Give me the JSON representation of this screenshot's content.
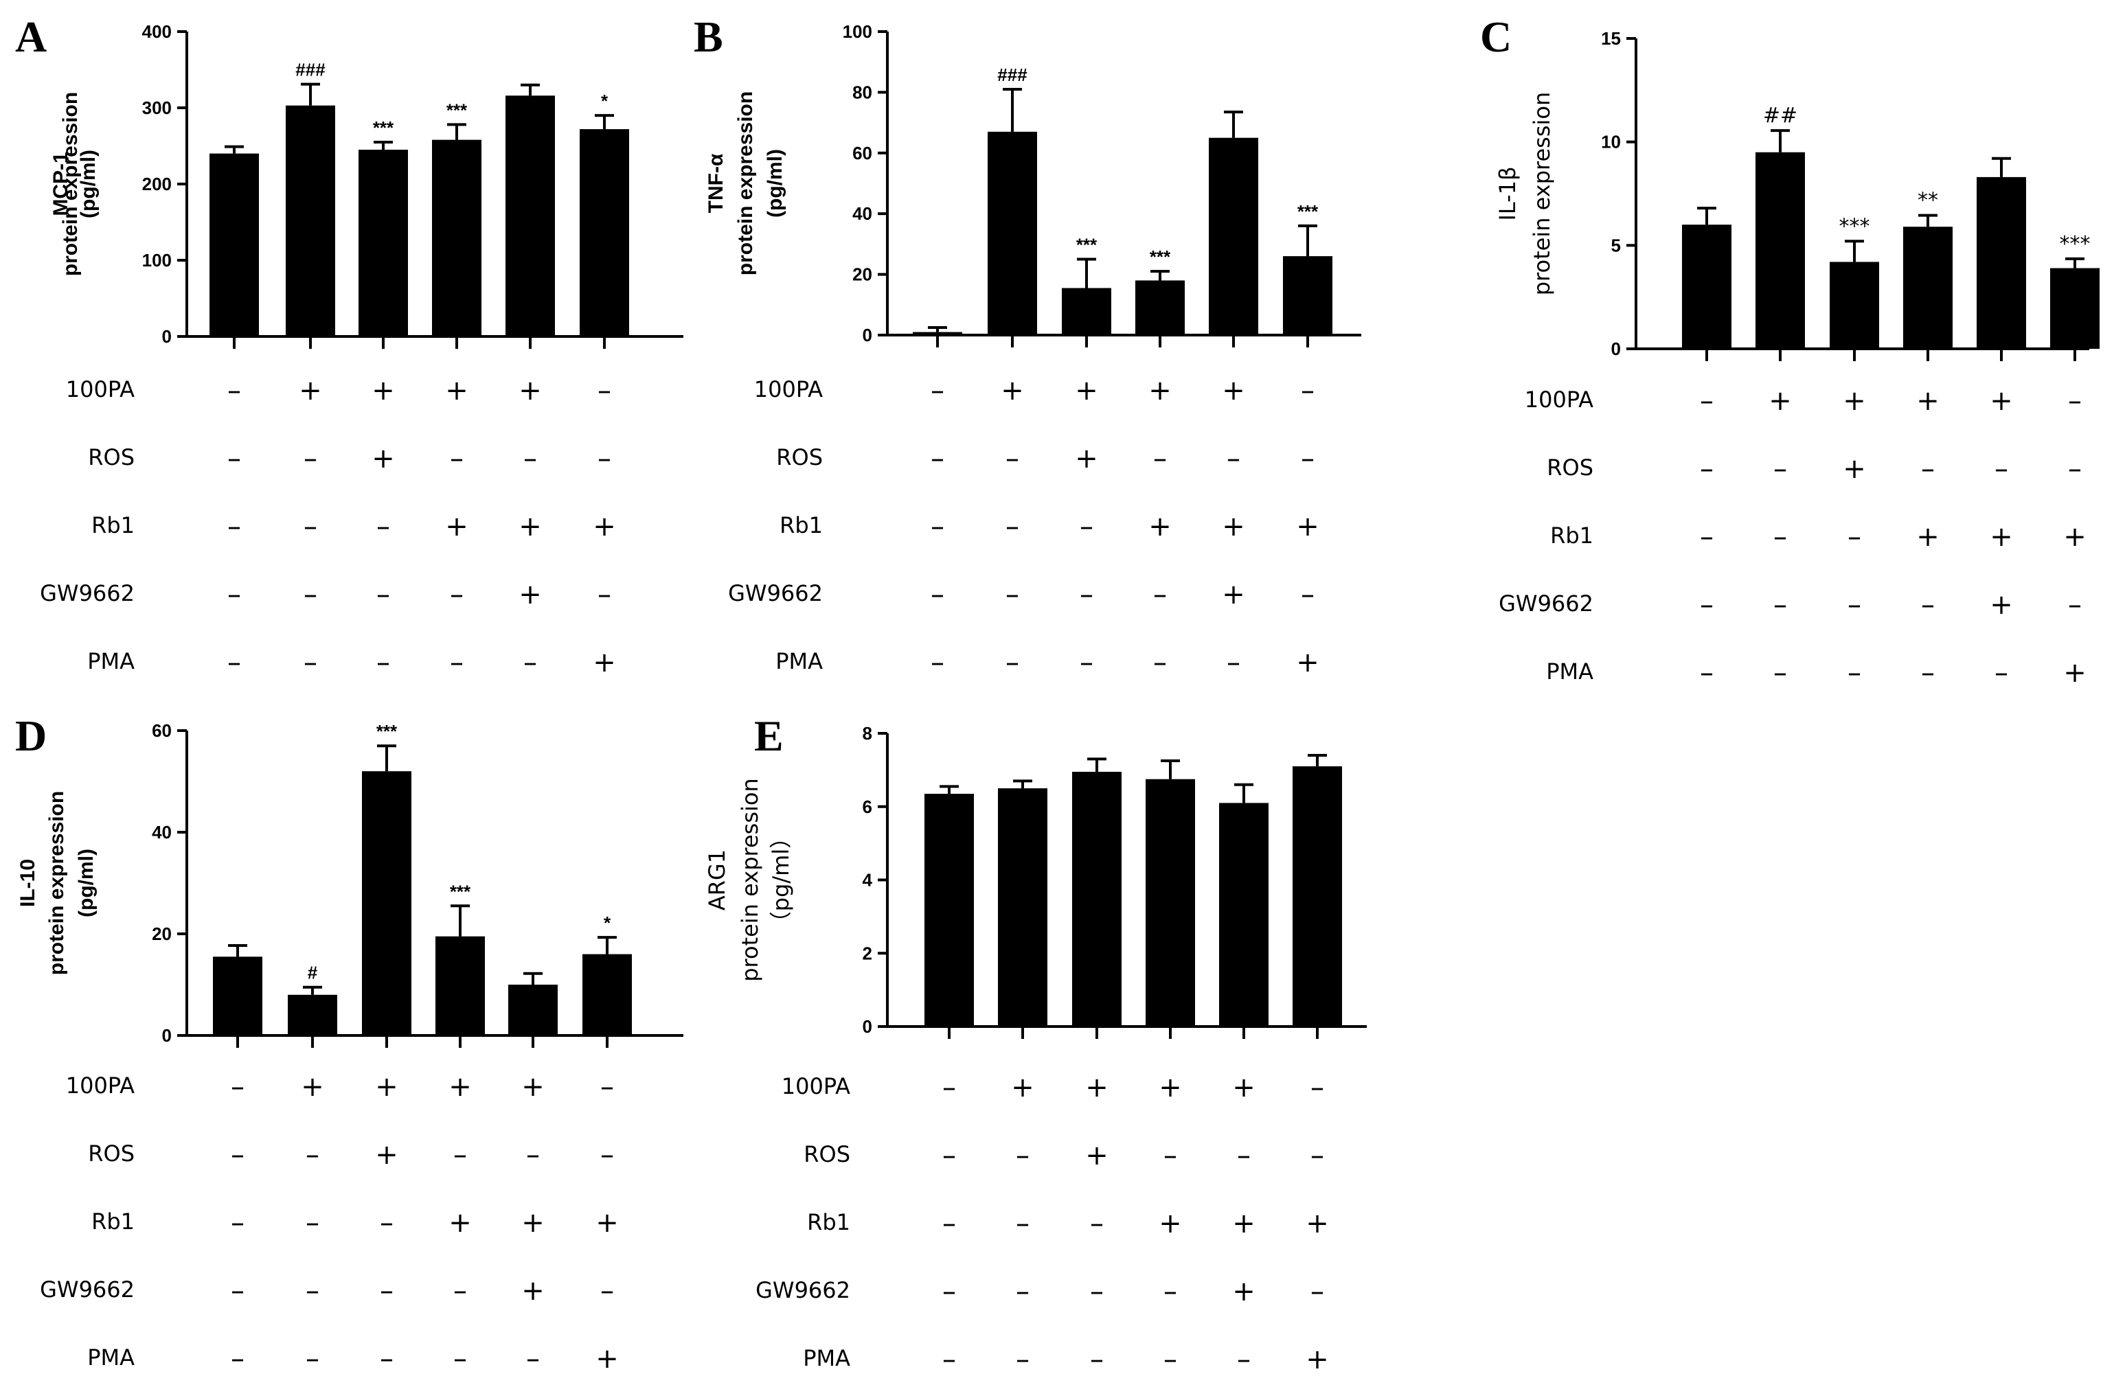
{
  "figure": {
    "treatment_labels": [
      "100PA",
      "ROS",
      "Rb1",
      "GW9662",
      "PMA"
    ],
    "treatment_matrix": [
      [
        "–",
        "+",
        "+",
        "+",
        "+",
        "–"
      ],
      [
        "–",
        "–",
        "+",
        "–",
        "–",
        "–"
      ],
      [
        "–",
        "–",
        "–",
        "+",
        "+",
        "+"
      ],
      [
        "–",
        "–",
        "–",
        "–",
        "+",
        "–"
      ],
      [
        "–",
        "–",
        "–",
        "–",
        "–",
        "+"
      ]
    ],
    "colors": {
      "bar": "#000000",
      "axis": "#000000",
      "background": "#ffffff"
    }
  },
  "chart_data": [
    {
      "panel": "A",
      "type": "bar",
      "ylabel_lines": [
        "MCP-1",
        "protein expression",
        "(pg/ml)"
      ],
      "ylim": [
        0,
        400
      ],
      "yticks": [
        0,
        100,
        200,
        300,
        400
      ],
      "values": [
        240,
        303,
        245,
        258,
        316,
        272
      ],
      "errors": [
        9,
        28,
        10,
        20,
        14,
        18
      ],
      "significance": [
        "",
        "###",
        "***",
        "***",
        "",
        "*"
      ]
    },
    {
      "panel": "B",
      "type": "bar",
      "ylabel_lines": [
        "TNF-α",
        "protein expression",
        "(pg/ml)"
      ],
      "ylim": [
        0,
        100
      ],
      "yticks": [
        0,
        20,
        40,
        60,
        80,
        100
      ],
      "values": [
        1,
        67,
        15.5,
        18,
        65,
        26
      ],
      "errors": [
        1.5,
        14,
        9.5,
        3,
        8.5,
        10
      ],
      "significance": [
        "",
        "###",
        "***",
        "***",
        "",
        "***"
      ]
    },
    {
      "panel": "C",
      "type": "bar",
      "ylabel_lines": [
        "IL-1β",
        "protein expression"
      ],
      "ylim": [
        0,
        15
      ],
      "yticks": [
        0,
        5,
        10,
        15
      ],
      "values": [
        6,
        9.5,
        4.2,
        5.9,
        8.3,
        3.9
      ],
      "errors": [
        0.8,
        1.05,
        1.0,
        0.55,
        0.9,
        0.45
      ],
      "significance": [
        "",
        "##",
        "***",
        "**",
        "",
        "***"
      ]
    },
    {
      "panel": "D",
      "type": "bar",
      "ylabel_lines": [
        "IL-10",
        "protein expression",
        "(pg/ml)"
      ],
      "ylim": [
        0,
        60
      ],
      "yticks": [
        0,
        20,
        40,
        60
      ],
      "values": [
        15.5,
        8,
        52,
        19.5,
        10,
        16
      ],
      "errors": [
        2.2,
        1.5,
        5,
        6,
        2.2,
        3.3
      ],
      "significance": [
        "",
        "#",
        "***",
        "***",
        "",
        "*"
      ]
    },
    {
      "panel": "E",
      "type": "bar",
      "ylabel_lines": [
        "ARG1",
        "protein expression",
        "（pg/ml）"
      ],
      "ylim": [
        0,
        8
      ],
      "yticks": [
        0,
        2,
        4,
        6,
        8
      ],
      "values": [
        6.35,
        6.5,
        6.95,
        6.75,
        6.1,
        7.1
      ],
      "errors": [
        0.2,
        0.2,
        0.35,
        0.5,
        0.5,
        0.3
      ],
      "significance": [
        "",
        "",
        "",
        "",
        "",
        ""
      ]
    }
  ]
}
